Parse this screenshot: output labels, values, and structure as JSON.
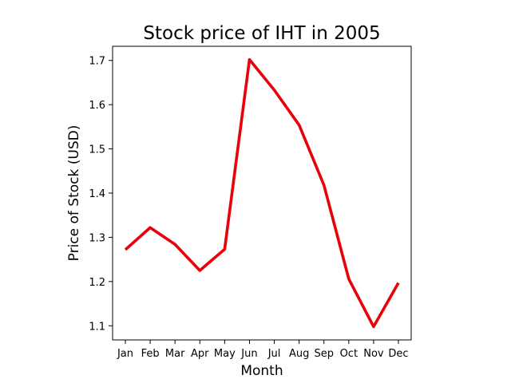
{
  "chart_data": {
    "type": "line",
    "title": "Stock price of IHT in 2005",
    "xlabel": "Month",
    "ylabel": "Price of Stock (USD)",
    "categories": [
      "Jan",
      "Feb",
      "Mar",
      "Apr",
      "May",
      "Jun",
      "Jul",
      "Aug",
      "Sep",
      "Oct",
      "Nov",
      "Dec"
    ],
    "series": [
      {
        "values": [
          1.272,
          1.322,
          1.284,
          1.225,
          1.273,
          1.702,
          1.633,
          1.554,
          1.418,
          1.206,
          1.098,
          1.197
        ],
        "color": "#e8000b"
      }
    ],
    "yticks": [
      "1.1",
      "1.2",
      "1.3",
      "1.4",
      "1.5",
      "1.6",
      "1.7"
    ],
    "ylim": [
      1.068,
      1.732
    ],
    "grid": false,
    "legend": "none"
  }
}
